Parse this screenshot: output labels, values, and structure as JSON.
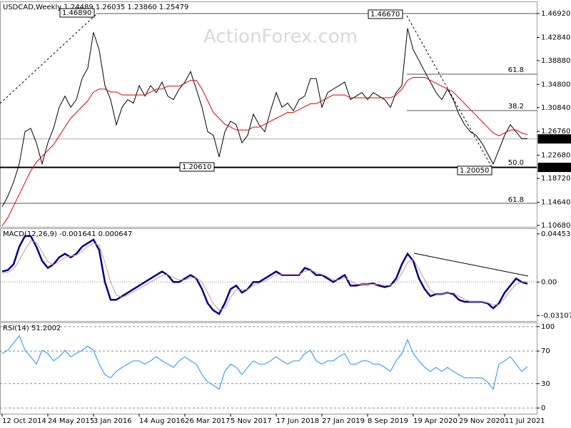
{
  "chart_data": [
    {
      "type": "ohlc-line",
      "title": "USDCAD,Weekly  1.24489 1.26035 1.23860 1.25479",
      "watermark": "ActionForex.com",
      "categories": [
        "12 Oct 2014",
        null,
        null,
        null,
        null,
        null,
        null,
        null,
        "24 May 2015",
        null,
        null,
        null,
        null,
        null,
        null,
        null,
        "3 Jan 2016",
        null,
        null,
        null,
        null,
        null,
        null,
        null,
        "14 Aug 2016",
        null,
        null,
        null,
        null,
        null,
        null,
        null,
        "26 Mar 2017",
        null,
        null,
        null,
        null,
        null,
        null,
        null,
        "5 Nov 2017",
        null,
        null,
        null,
        null,
        null,
        null,
        null,
        "17 Jun 2018",
        null,
        null,
        null,
        null,
        null,
        null,
        null,
        "27 Jan 2019",
        null,
        null,
        null,
        null,
        null,
        null,
        null,
        "8 Sep 2019",
        null,
        null,
        null,
        null,
        null,
        null,
        null,
        "19 Apr 2020",
        null,
        null,
        null,
        null,
        null,
        null,
        null,
        "29 Nov 2020",
        null,
        null,
        null,
        null,
        null,
        null,
        null,
        "11 Jul 2021",
        null,
        null,
        null,
        null
      ],
      "series": [
        {
          "color": "#000000",
          "values": [
            1.1385,
            1.157,
            1.181,
            1.212,
            1.267,
            1.273,
            1.248,
            1.212,
            1.248,
            1.273,
            1.309,
            1.328,
            1.309,
            1.322,
            1.358,
            1.376,
            1.437,
            1.407,
            1.346,
            1.322,
            1.279,
            1.309,
            1.322,
            1.316,
            1.346,
            1.328,
            1.346,
            1.334,
            1.352,
            1.328,
            1.322,
            1.34,
            1.352,
            1.37,
            1.34,
            1.309,
            1.267,
            1.261,
            1.224,
            1.267,
            1.285,
            1.279,
            1.248,
            1.261,
            1.297,
            1.279,
            1.267,
            1.303,
            1.334,
            1.309,
            1.316,
            1.303,
            1.322,
            1.328,
            1.358,
            1.358,
            1.309,
            1.334,
            1.34,
            1.346,
            1.352,
            1.322,
            1.328,
            1.334,
            1.322,
            1.334,
            1.328,
            1.322,
            1.309,
            1.334,
            1.346,
            1.444,
            1.407,
            1.389,
            1.37,
            1.352,
            1.334,
            1.322,
            1.34,
            1.322,
            1.297,
            1.279,
            1.267,
            1.261,
            1.248,
            1.23,
            1.212,
            1.236,
            1.261,
            1.279,
            1.267,
            1.255,
            1.255
          ]
        },
        {
          "color": "#e00000",
          "values": [
            1.106,
            1.12,
            1.14,
            1.16,
            1.18,
            1.2,
            1.215,
            1.225,
            1.235,
            1.245,
            1.26,
            1.275,
            1.29,
            1.3,
            1.31,
            1.32,
            1.335,
            1.34,
            1.34,
            1.335,
            1.335,
            1.33,
            1.33,
            1.33,
            1.33,
            1.33,
            1.335,
            1.34,
            1.34,
            1.345,
            1.345,
            1.345,
            1.35,
            1.355,
            1.355,
            1.34,
            1.32,
            1.3,
            1.29,
            1.28,
            1.275,
            1.27,
            1.27,
            1.27,
            1.275,
            1.275,
            1.28,
            1.285,
            1.29,
            1.295,
            1.3,
            1.3,
            1.305,
            1.31,
            1.315,
            1.315,
            1.32,
            1.325,
            1.33,
            1.33,
            1.33,
            1.325,
            1.325,
            1.325,
            1.325,
            1.325,
            1.325,
            1.325,
            1.325,
            1.33,
            1.34,
            1.355,
            1.36,
            1.36,
            1.36,
            1.355,
            1.35,
            1.345,
            1.34,
            1.335,
            1.325,
            1.315,
            1.305,
            1.295,
            1.285,
            1.275,
            1.265,
            1.26,
            1.265,
            1.27,
            1.27,
            1.265,
            1.262
          ]
        }
      ],
      "ylim": [
        1.1044,
        1.4887
      ],
      "yticks": [
        {
          "value": 1.4692,
          "label": "1.46920"
        },
        {
          "value": 1.4284,
          "label": "1.42840"
        },
        {
          "value": 1.3888,
          "label": "1.38880"
        },
        {
          "value": 1.348,
          "label": "1.34800"
        },
        {
          "value": 1.3084,
          "label": "1.30840"
        },
        {
          "value": 1.2676,
          "label": "1.26760"
        },
        {
          "value": 1.2268,
          "label": "1.22680"
        },
        {
          "value": 1.1872,
          "label": "1.18720"
        },
        {
          "value": 1.1464,
          "label": "1.14640"
        },
        {
          "value": 1.1068,
          "label": "1.10680"
        }
      ],
      "current": {
        "value": 1.25479,
        "label": "1.25479"
      },
      "level": {
        "value": 1.2061,
        "label": "1.20610"
      },
      "annotations": [
        "1.46890",
        "1.46670",
        "1.20610",
        "1.20050"
      ],
      "fib_labels": [
        "61.8",
        "38.2",
        "50.0",
        "61.8"
      ]
    },
    {
      "type": "line",
      "title": "MACD(12,26,9) -0.001641 0.000647",
      "series": [
        {
          "color": "#000080",
          "width": 2.5,
          "values": [
            0.0098,
            0.0111,
            0.0164,
            0.0327,
            0.0426,
            0.0426,
            0.0327,
            0.0196,
            0.0131,
            0.0164,
            0.0229,
            0.0262,
            0.0229,
            0.0262,
            0.0327,
            0.036,
            0.0393,
            0.0295,
            0,
            -0.0164,
            -0.0164,
            -0.0131,
            -0.0098,
            -0.0065,
            -0.0033,
            0,
            0.0033,
            0.0065,
            0.0098,
            0.0065,
            0,
            0,
            0.0033,
            0.0065,
            0.0033,
            -0.0065,
            -0.0196,
            -0.0262,
            -0.0295,
            -0.0196,
            -0.0065,
            -0.0033,
            -0.0098,
            -0.0065,
            0,
            0,
            0.0033,
            0.0065,
            0.0098,
            0.0065,
            0.0065,
            0.0065,
            0.0065,
            0.0131,
            0.0111,
            0.0065,
            0.0065,
            0.0033,
            0,
            0.0033,
            0.0065,
            -0.0033,
            -0.0033,
            -0.002,
            -0.002,
            -0.0013,
            -0.0033,
            -0.0046,
            -0.0033,
            0.0033,
            0.0164,
            0.0262,
            0.0196,
            0.0033,
            -0.0065,
            -0.0131,
            -0.0111,
            -0.0111,
            -0.0098,
            -0.0111,
            -0.0164,
            -0.0183,
            -0.0183,
            -0.0183,
            -0.0183,
            -0.0196,
            -0.0242,
            -0.0196,
            -0.0098,
            -0.0033,
            0.0033,
            0,
            -0.0016
          ]
        },
        {
          "color": "#d89090",
          "width": 1,
          "values": [
            0.008,
            0.009,
            0.012,
            0.02,
            0.03,
            0.038,
            0.037,
            0.028,
            0.019,
            0.016,
            0.019,
            0.023,
            0.024,
            0.025,
            0.029,
            0.033,
            0.036,
            0.034,
            0.018,
            0,
            -0.012,
            -0.014,
            -0.012,
            -0.009,
            -0.006,
            -0.003,
            0,
            0.003,
            0.006,
            0.007,
            0.004,
            0.002,
            0.002,
            0.004,
            0.004,
            0,
            -0.01,
            -0.02,
            -0.026,
            -0.024,
            -0.014,
            -0.007,
            -0.007,
            -0.007,
            -0.003,
            -0.001,
            0.001,
            0.004,
            0.007,
            0.007,
            0.007,
            0.007,
            0.007,
            0.01,
            0.011,
            0.009,
            0.007,
            0.005,
            0.002,
            0.002,
            0.004,
            0.001,
            -0.002,
            -0.002,
            -0.002,
            -0.002,
            -0.002,
            -0.003,
            -0.003,
            0,
            0.008,
            0.018,
            0.021,
            0.012,
            0.002,
            -0.008,
            -0.011,
            -0.011,
            -0.01,
            -0.01,
            -0.013,
            -0.016,
            -0.018,
            -0.018,
            -0.018,
            -0.019,
            -0.021,
            -0.021,
            -0.015,
            -0.008,
            -0.002,
            0,
            0.0006
          ]
        }
      ],
      "ylim": [
        -0.036,
        0.0491
      ],
      "yticks": [
        0.044534,
        {
          "value": 0,
          "label": "0.00"
        },
        -0.031072
      ]
    },
    {
      "type": "line",
      "title": "RSI(14) 51.2002",
      "series": [
        {
          "color": "#1e90ff",
          "width": 1,
          "values": [
            67,
            71,
            80,
            89,
            71,
            63,
            54,
            71,
            67,
            58,
            63,
            71,
            63,
            67,
            71,
            76,
            71,
            54,
            41,
            37,
            45,
            50,
            54,
            58,
            58,
            54,
            58,
            63,
            58,
            54,
            50,
            58,
            63,
            58,
            54,
            41,
            32,
            28,
            23,
            45,
            54,
            50,
            41,
            50,
            58,
            54,
            54,
            58,
            63,
            58,
            54,
            58,
            58,
            67,
            71,
            58,
            54,
            58,
            58,
            63,
            67,
            54,
            54,
            58,
            58,
            54,
            54,
            50,
            45,
            58,
            67,
            84,
            67,
            58,
            50,
            45,
            50,
            45,
            50,
            45,
            41,
            37,
            37,
            37,
            37,
            32,
            23,
            54,
            58,
            63,
            54,
            45,
            51
          ]
        }
      ],
      "ylim": [
        -7,
        104.3
      ],
      "yticks": [
        100,
        70,
        30,
        0
      ],
      "grid": "dashed"
    }
  ]
}
